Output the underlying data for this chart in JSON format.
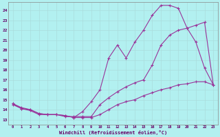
{
  "xlabel": "Windchill (Refroidissement éolien,°C)",
  "bg_color": "#b2f0f0",
  "grid_color": "#cceeee",
  "line_color": "#993399",
  "xlim": [
    -0.5,
    23.5
  ],
  "ylim": [
    12.5,
    24.8
  ],
  "xticks": [
    0,
    1,
    2,
    3,
    4,
    5,
    6,
    7,
    8,
    9,
    10,
    11,
    12,
    13,
    14,
    15,
    16,
    17,
    18,
    19,
    20,
    21,
    22,
    23
  ],
  "yticks": [
    13,
    14,
    15,
    16,
    17,
    18,
    19,
    20,
    21,
    22,
    23,
    24
  ],
  "line1_x": [
    0,
    1,
    2,
    3,
    4,
    5,
    6,
    7,
    8,
    9,
    10,
    11,
    12,
    13,
    14,
    15,
    16,
    17,
    18,
    19,
    20,
    21,
    22,
    23
  ],
  "line1_y": [
    14.6,
    14.1,
    14.0,
    13.6,
    13.5,
    13.5,
    13.4,
    13.2,
    13.8,
    14.8,
    16.0,
    19.2,
    20.5,
    19.2,
    20.8,
    22.0,
    23.5,
    24.5,
    24.5,
    24.2,
    22.2,
    20.8,
    18.2,
    16.5
  ],
  "line2_x": [
    0,
    1,
    2,
    3,
    4,
    5,
    6,
    7,
    8,
    9,
    10,
    11,
    12,
    13,
    14,
    15,
    16,
    17,
    18,
    19,
    20,
    21,
    22,
    23
  ],
  "line2_y": [
    14.6,
    14.2,
    14.0,
    13.6,
    13.5,
    13.5,
    13.3,
    13.3,
    13.3,
    13.3,
    14.5,
    15.2,
    15.8,
    16.3,
    16.7,
    17.0,
    18.5,
    20.5,
    21.5,
    22.0,
    22.2,
    22.5,
    22.8,
    16.5
  ],
  "line3_x": [
    0,
    1,
    2,
    3,
    4,
    5,
    6,
    7,
    8,
    9,
    10,
    11,
    12,
    13,
    14,
    15,
    16,
    17,
    18,
    19,
    20,
    21,
    22,
    23
  ],
  "line3_y": [
    14.5,
    14.1,
    13.9,
    13.5,
    13.5,
    13.5,
    13.4,
    13.2,
    13.2,
    13.2,
    13.5,
    14.0,
    14.5,
    14.8,
    15.0,
    15.4,
    15.7,
    16.0,
    16.2,
    16.5,
    16.6,
    16.8,
    16.8,
    16.5
  ]
}
